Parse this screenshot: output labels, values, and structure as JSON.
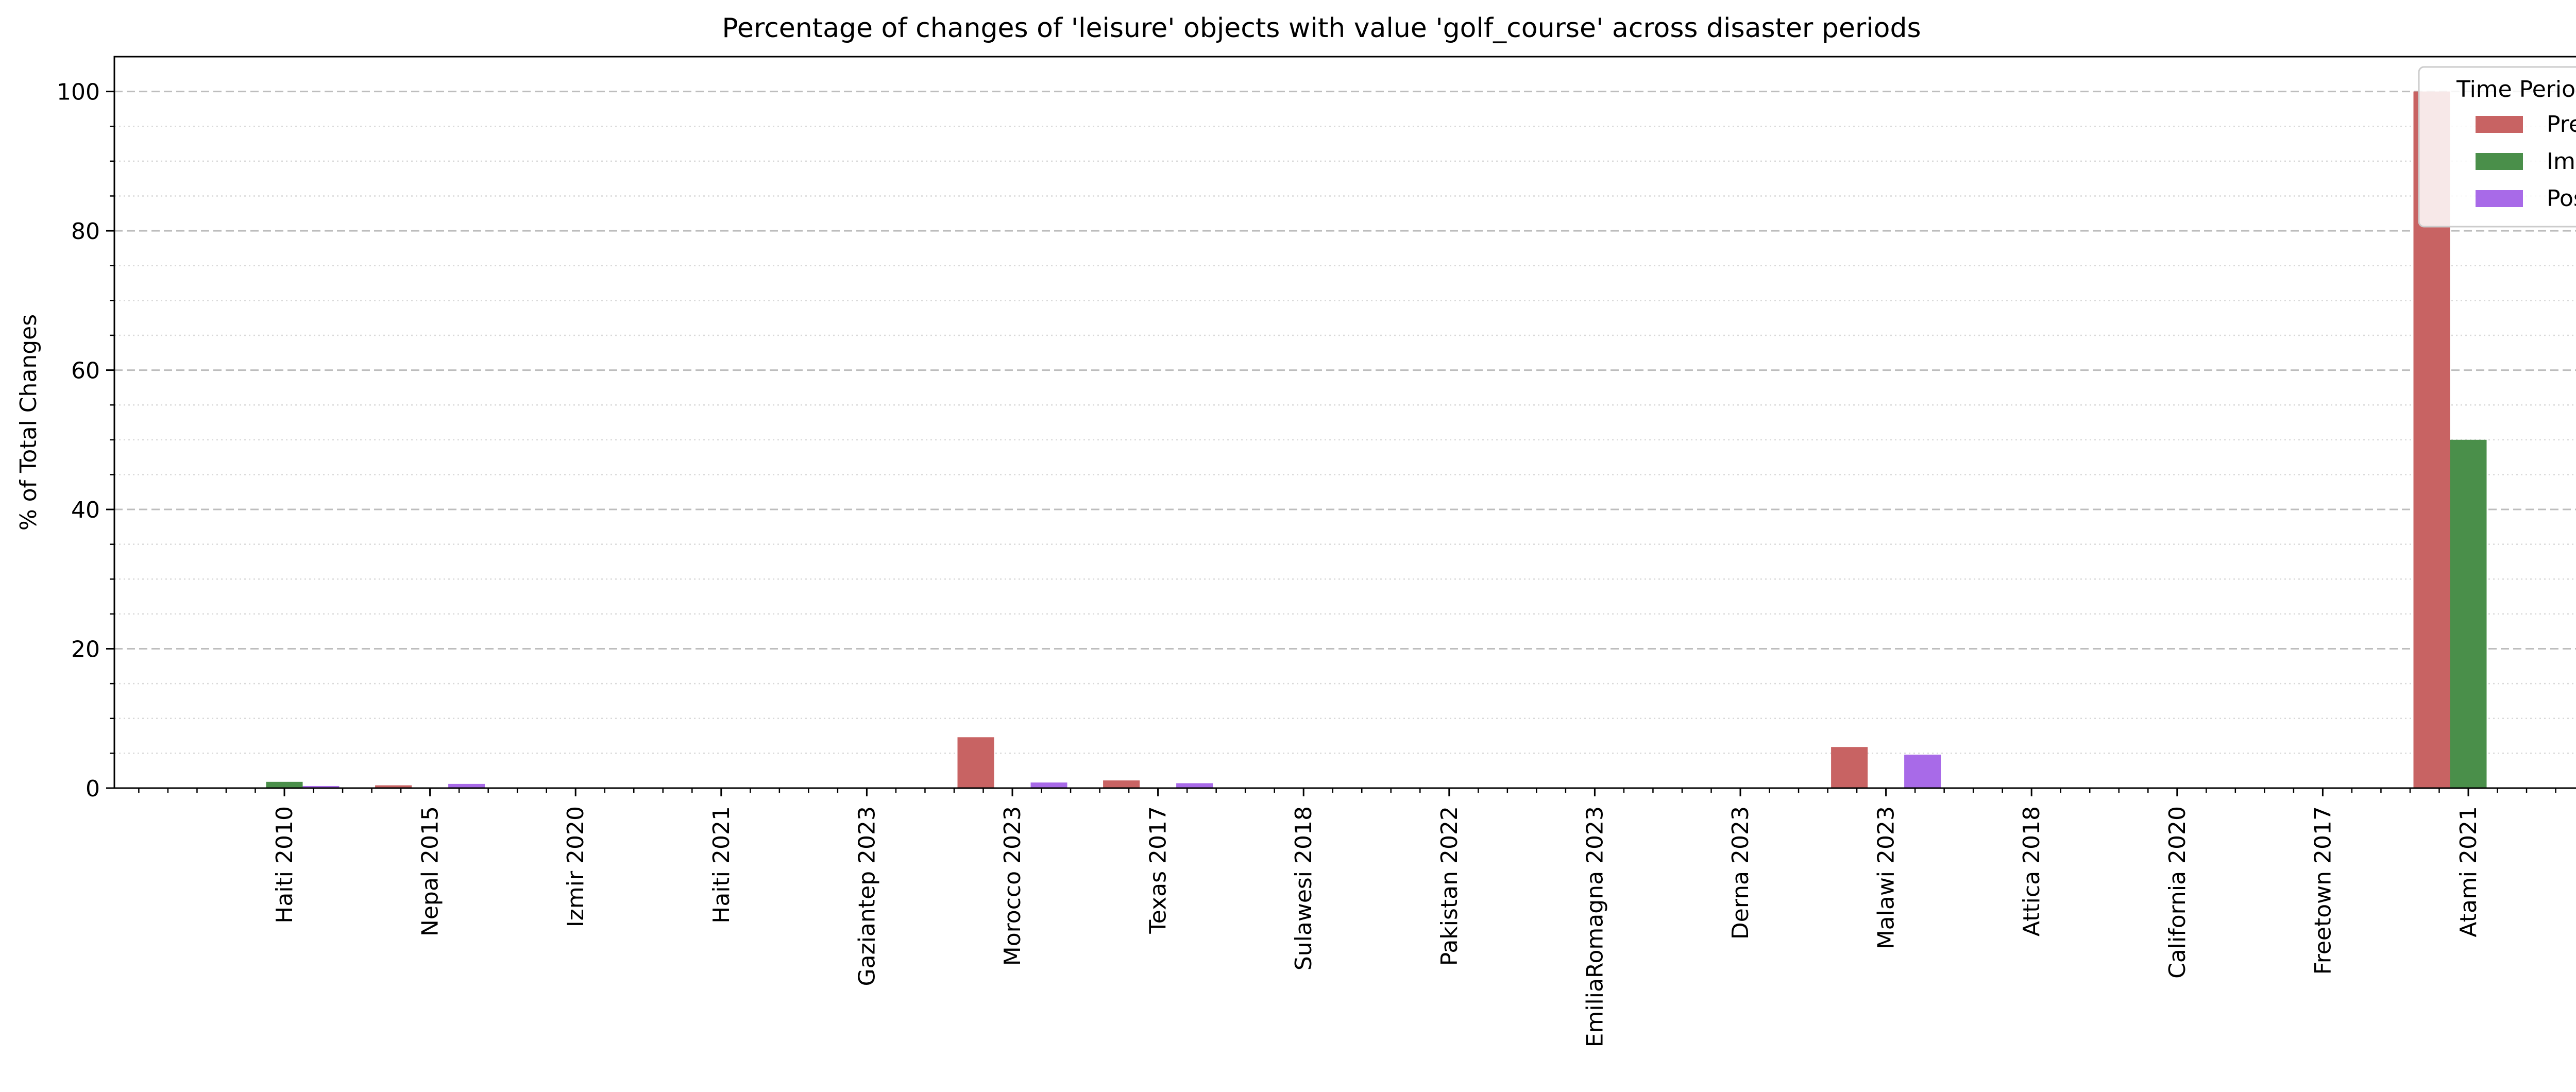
{
  "chart_data": {
    "type": "bar",
    "title": "Percentage of changes of 'leisure' objects with value 'golf_course' across disaster periods",
    "xlabel": "",
    "ylabel": "% of Total Changes",
    "ylim": [
      0,
      105
    ],
    "yticks": [
      0,
      20,
      40,
      60,
      80,
      100
    ],
    "grid": "y major dashed, y minor dotted",
    "legend": {
      "title": "Time Period",
      "placement": "top-right"
    },
    "categories": [
      "Haiti 2010",
      "Nepal 2015",
      "Izmir 2020",
      "Haiti 2021",
      "Gaziantep 2023",
      "Morocco 2023",
      "Texas 2017",
      "Sulawesi 2018",
      "Pakistan 2022",
      "EmiliaRomagna 2023",
      "Derna 2023",
      "Malawi 2023",
      "Attica 2018",
      "California 2020",
      "Freetown 2017",
      "Atami 2021"
    ],
    "series": [
      {
        "name": "Pre",
        "color": "#c86363",
        "values": [
          0,
          0.4,
          0,
          0,
          0,
          7.3,
          1.1,
          0,
          0,
          0,
          0,
          5.9,
          0,
          0,
          0,
          100
        ]
      },
      {
        "name": "Imm",
        "color": "#4a8f4a",
        "values": [
          0.9,
          0,
          0,
          0,
          0,
          0,
          0,
          0,
          0,
          0,
          0,
          0,
          0,
          0,
          0,
          50
        ]
      },
      {
        "name": "Post",
        "color": "#a86ae8",
        "values": [
          0.3,
          0.6,
          0,
          0,
          0,
          0.8,
          0.7,
          0,
          0,
          0.1,
          0,
          4.8,
          0,
          0,
          0,
          0
        ]
      }
    ]
  }
}
